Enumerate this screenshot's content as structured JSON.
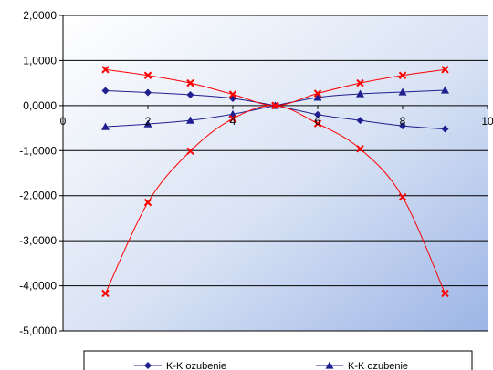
{
  "chart_data": {
    "type": "scatter",
    "xlim": [
      0,
      10
    ],
    "ylim": [
      -5,
      2
    ],
    "x_ticks": [
      0,
      2,
      4,
      6,
      8,
      10
    ],
    "x_tick_labels": [
      "0",
      "2",
      "4",
      "6",
      "8",
      "10"
    ],
    "y_ticks": [
      2,
      1,
      0,
      -1,
      -2,
      -3,
      -4,
      -5
    ],
    "y_tick_labels": [
      "2,0000",
      "1,0000",
      "0,0000",
      "-1,0000",
      "-2,0000",
      "-3,0000",
      "-4,0000",
      "-5,0000"
    ],
    "grid": "horizontal",
    "legend_position": "bottom",
    "series": [
      {
        "name": "K-K ozubenie",
        "color": "#1f1f8f",
        "marker": "diamond",
        "x": [
          1,
          2,
          3,
          4,
          5,
          6,
          7,
          8,
          9
        ],
        "y": [
          0.33,
          0.29,
          0.24,
          0.16,
          0.0,
          -0.2,
          -0.33,
          -0.45,
          -0.52
        ]
      },
      {
        "name": "K-K ozubenie",
        "color": "#1f1f8f",
        "marker": "triangle",
        "x": [
          1,
          2,
          3,
          4,
          5,
          6,
          7,
          8,
          9
        ],
        "y": [
          -0.47,
          -0.41,
          -0.33,
          -0.19,
          0.0,
          0.18,
          0.26,
          0.3,
          0.34
        ]
      },
      {
        "color": "#ff0000",
        "marker": "x",
        "x": [
          1,
          2,
          3,
          4,
          5,
          6,
          7,
          8,
          9
        ],
        "y": [
          0.8,
          0.67,
          0.5,
          0.25,
          0.0,
          0.27,
          0.5,
          0.67,
          0.8
        ]
      },
      {
        "color": "#ff0000",
        "marker": "x",
        "x": [
          1,
          2,
          3,
          4,
          5,
          6,
          7,
          8,
          9
        ],
        "y": [
          -4.17,
          -2.15,
          -1.01,
          -0.29,
          0.0,
          -0.4,
          -0.96,
          -2.03,
          -4.17
        ]
      }
    ]
  }
}
